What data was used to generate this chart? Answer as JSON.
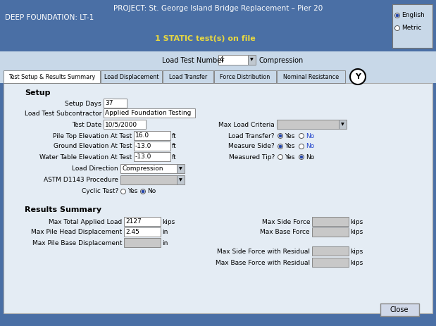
{
  "title_line1": "PROJECT: St. George Island Bridge Replacement – Pier 20",
  "title_line2": "DEEP FOUNDATION: LT-1",
  "static_text": "1 STATIC test(s) on file",
  "header_bg": "#4a6fa5",
  "light_bg": "#c8d8e8",
  "body_bg": "#e4ecf4",
  "tabs": [
    "Test Setup & Results Summary",
    "Load Displacement",
    "Load Transfer",
    "Force Distribution",
    "Nominal Resistance"
  ],
  "load_test_number_label": "Load Test Number",
  "load_test_number_value": "4",
  "load_test_type": "Compression",
  "setup_label": "Setup",
  "setup_days_label": "Setup Days",
  "setup_days_value": "37",
  "subcontractor_label": "Load Test Subcontractor",
  "subcontractor_value": "Applied Foundation Testing",
  "test_date_label": "Test Date",
  "test_date_value": "10/5/2000",
  "pile_top_label": "Pile Top Elevation At Test",
  "pile_top_value": "16.0",
  "ground_elev_label": "Ground Elevation At Test",
  "ground_elev_value": "-13.0",
  "water_table_label": "Water Table Elevation At Test",
  "water_table_value": "-13.0",
  "load_direction_label": "Load Direction",
  "load_direction_value": "Compression",
  "astm_label": "ASTM D1143 Procedure",
  "cyclic_label": "Cyclic Test?",
  "max_load_criteria_label": "Max Load Criteria",
  "load_transfer_label": "Load Transfer?",
  "measure_side_label": "Measure Side?",
  "measured_tip_label": "Measured Tip?",
  "results_label": "Results Summary",
  "max_total_load_label": "Max Total Applied Load",
  "max_total_load_value": "2127",
  "max_pile_head_label": "Max Pile Head Displacement",
  "max_pile_head_value": "2.45",
  "max_pile_base_label": "Max Pile Base Displacement",
  "max_side_force_label": "Max Side Force",
  "max_base_force_label": "Max Base Force",
  "max_side_residual_label": "Max Side Force with Residual",
  "max_base_residual_label": "Max Base Force with Residual",
  "english_label": "English",
  "metric_label": "Metric"
}
